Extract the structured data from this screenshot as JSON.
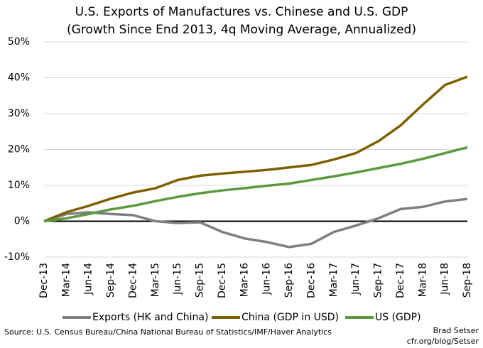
{
  "chart_data": {
    "type": "line",
    "title": "U.S. Exports of Manufactures vs. Chinese and U.S. GDP",
    "subtitle": "(Growth Since End 2013, 4q Moving Average, Annualized)",
    "categories": [
      "Dec-13",
      "Mar-14",
      "Jun-14",
      "Sep-14",
      "Dec-14",
      "Mar-15",
      "Jun-15",
      "Sep-15",
      "Dec-15",
      "Mar-16",
      "Jun-16",
      "Sep-16",
      "Dec-16",
      "Mar-17",
      "Jun-17",
      "Sep-17",
      "Dec-17",
      "Mar-18",
      "Jun-18",
      "Sep-18"
    ],
    "series": [
      {
        "name": "Exports (HK and China)",
        "color": "#7f7f7f",
        "values": [
          0,
          2,
          2.5,
          2,
          1.7,
          0,
          -0.5,
          -0.3,
          -3,
          -4.8,
          -5.8,
          -7.2,
          -6.3,
          -3,
          -1.2,
          0.8,
          3.4,
          4,
          5.5,
          6.2
        ]
      },
      {
        "name": "China (GDP in USD)",
        "color": "#7f6000",
        "values": [
          0,
          2.5,
          4.3,
          6.3,
          8,
          9.2,
          11.5,
          12.7,
          13.3,
          13.8,
          14.3,
          15,
          15.7,
          17.2,
          19,
          22.3,
          26.7,
          32.5,
          38,
          40.3
        ]
      },
      {
        "name": "US (GDP)",
        "color": "#5b9a3c",
        "values": [
          0,
          0.8,
          2,
          3.3,
          4.3,
          5.6,
          6.8,
          7.8,
          8.6,
          9.2,
          9.9,
          10.5,
          11.5,
          12.5,
          13.6,
          14.8,
          16,
          17.4,
          19,
          20.6
        ]
      }
    ],
    "ylim": [
      -10,
      50
    ],
    "yticks": [
      {
        "value": -10,
        "label": "-10%"
      },
      {
        "value": 0,
        "label": "0%"
      },
      {
        "value": 10,
        "label": "10%"
      },
      {
        "value": 20,
        "label": "20%"
      },
      {
        "value": 30,
        "label": "30%"
      },
      {
        "value": 40,
        "label": "40%"
      },
      {
        "value": 50,
        "label": "50%"
      }
    ],
    "grid": true,
    "legend": "bottom",
    "source": "Source: U.S. Census Bureau/China National Bureau of Statistics/IMF/Haver Analytics",
    "credit": [
      "Brad Setser",
      "cfr.org/blog/Setser"
    ]
  }
}
